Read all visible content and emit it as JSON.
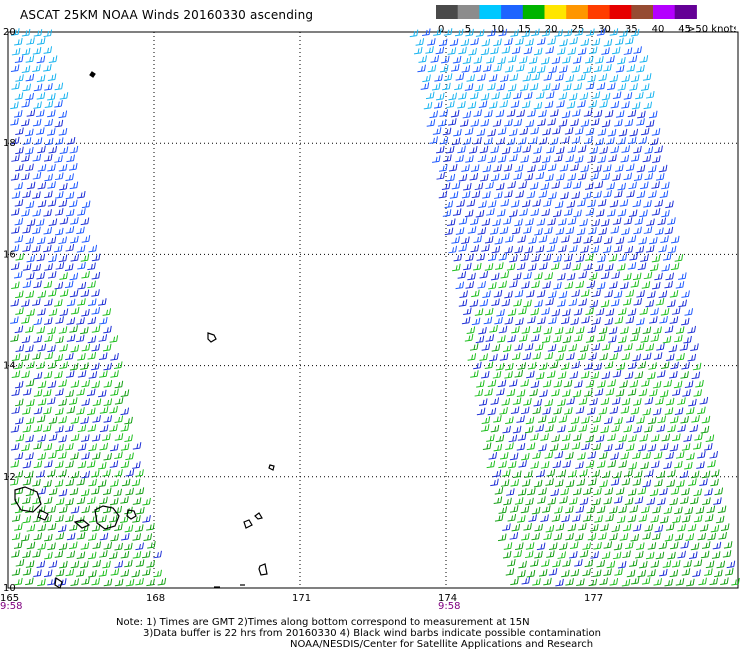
{
  "title": "ASCAT 25KM NOAA Winds 20160330 ascending",
  "colorbar": {
    "labels": [
      "0",
      "5",
      "10",
      "15",
      "20",
      "25",
      "30",
      "35",
      "40",
      "45",
      ">50 knots"
    ],
    "colors": [
      "#4a4a4a",
      "#8c8c8c",
      "#00c8ff",
      "#1e64ff",
      "#00b400",
      "#ffe600",
      "#ff9600",
      "#ff3c00",
      "#e60000",
      "#964b32",
      "#b400ff",
      "#640096"
    ]
  },
  "map": {
    "lat_labels": [
      "20",
      "18",
      "16",
      "14",
      "12",
      "10"
    ],
    "lon_labels": [
      "165",
      "168",
      "171",
      "174",
      "177"
    ],
    "time_labels": [
      "9:58",
      "9:58"
    ],
    "time_color": "#800080",
    "grid": "dotted",
    "lon_range": [
      165,
      180
    ],
    "lat_range": [
      10,
      20
    ],
    "swaths": [
      {
        "name": "west",
        "lon_top": [
          165.0,
          165.8
        ],
        "lon_bottom": [
          165.0,
          168.2
        ]
      },
      {
        "name": "east",
        "lon_top": [
          173.2,
          177.9
        ],
        "lon_bottom": [
          175.2,
          180.0
        ]
      }
    ]
  },
  "notes": {
    "line1": "Note: 1) Times are GMT 2)Times along bottom correspond to measurement at 15N",
    "line2": "3)Data buffer is 22 hrs from 20160330 4) Black wind barbs indicate possible contamination",
    "line3": "NOAA/NESDIS/Center for Satellite Applications and Research"
  }
}
